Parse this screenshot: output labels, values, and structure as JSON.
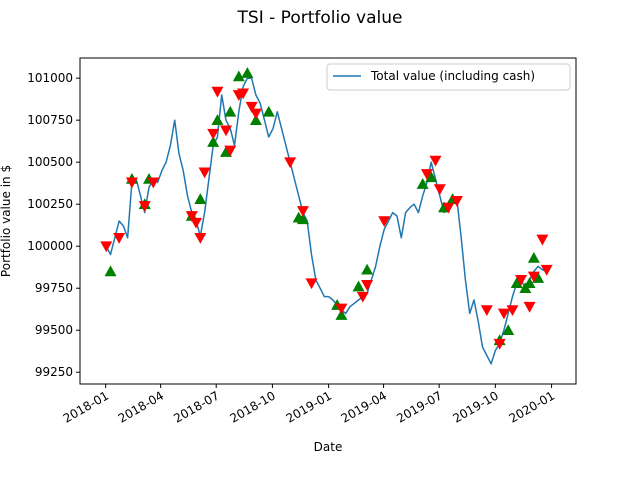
{
  "chart_data": {
    "type": "line",
    "title": "TSI - Portfolio value",
    "xlabel": "Date",
    "ylabel": "Portfolio value in $",
    "legend": {
      "entries": [
        "Total value (including cash)"
      ],
      "placement": "top-right"
    },
    "x_ticks": [
      "2018-01",
      "2018-04",
      "2018-07",
      "2018-10",
      "2019-01",
      "2019-04",
      "2019-07",
      "2019-10",
      "2020-01"
    ],
    "y_ticks": [
      99250,
      99500,
      99750,
      100000,
      100250,
      100500,
      100750,
      101000
    ],
    "xlim": [
      "2017-11-20",
      "2020-02-10"
    ],
    "ylim": [
      99180,
      101120
    ],
    "grid": false,
    "line_color": "#1f77b4",
    "buy_color": "#008000",
    "sell_color": "#ff0000",
    "series": [
      {
        "name": "Total value (including cash)",
        "points": [
          [
            "2018-01-02",
            100000
          ],
          [
            "2018-01-09",
            99950
          ],
          [
            "2018-01-16",
            100050
          ],
          [
            "2018-01-23",
            100150
          ],
          [
            "2018-01-30",
            100120
          ],
          [
            "2018-02-06",
            100050
          ],
          [
            "2018-02-13",
            100380
          ],
          [
            "2018-02-20",
            100400
          ],
          [
            "2018-02-27",
            100300
          ],
          [
            "2018-03-06",
            100200
          ],
          [
            "2018-03-13",
            100350
          ],
          [
            "2018-03-20",
            100400
          ],
          [
            "2018-03-27",
            100380
          ],
          [
            "2018-04-03",
            100450
          ],
          [
            "2018-04-10",
            100500
          ],
          [
            "2018-04-17",
            100600
          ],
          [
            "2018-04-24",
            100750
          ],
          [
            "2018-05-01",
            100550
          ],
          [
            "2018-05-08",
            100450
          ],
          [
            "2018-05-15",
            100300
          ],
          [
            "2018-05-22",
            100200
          ],
          [
            "2018-05-29",
            100150
          ],
          [
            "2018-06-05",
            100060
          ],
          [
            "2018-06-12",
            100200
          ],
          [
            "2018-06-19",
            100400
          ],
          [
            "2018-06-26",
            100600
          ],
          [
            "2018-07-03",
            100650
          ],
          [
            "2018-07-10",
            100900
          ],
          [
            "2018-07-17",
            100750
          ],
          [
            "2018-07-24",
            100700
          ],
          [
            "2018-07-31",
            100600
          ],
          [
            "2018-08-07",
            100800
          ],
          [
            "2018-08-14",
            100950
          ],
          [
            "2018-08-21",
            101000
          ],
          [
            "2018-08-28",
            101000
          ],
          [
            "2018-09-04",
            100900
          ],
          [
            "2018-09-11",
            100850
          ],
          [
            "2018-09-18",
            100750
          ],
          [
            "2018-09-25",
            100650
          ],
          [
            "2018-10-02",
            100700
          ],
          [
            "2018-10-09",
            100800
          ],
          [
            "2018-10-16",
            100700
          ],
          [
            "2018-10-23",
            100600
          ],
          [
            "2018-10-30",
            100500
          ],
          [
            "2018-11-06",
            100400
          ],
          [
            "2018-11-13",
            100300
          ],
          [
            "2018-11-20",
            100200
          ],
          [
            "2018-11-27",
            100150
          ],
          [
            "2018-12-04",
            99950
          ],
          [
            "2018-12-11",
            99800
          ],
          [
            "2018-12-18",
            99750
          ],
          [
            "2018-12-25",
            99700
          ],
          [
            "2019-01-01",
            99700
          ],
          [
            "2019-01-08",
            99680
          ],
          [
            "2019-01-15",
            99650
          ],
          [
            "2019-01-22",
            99620
          ],
          [
            "2019-01-29",
            99600
          ],
          [
            "2019-02-05",
            99640
          ],
          [
            "2019-02-12",
            99660
          ],
          [
            "2019-02-19",
            99680
          ],
          [
            "2019-02-26",
            99700
          ],
          [
            "2019-03-05",
            99720
          ],
          [
            "2019-03-12",
            99800
          ],
          [
            "2019-03-19",
            99880
          ],
          [
            "2019-03-26",
            100000
          ],
          [
            "2019-04-02",
            100100
          ],
          [
            "2019-04-09",
            100150
          ],
          [
            "2019-04-16",
            100200
          ],
          [
            "2019-04-23",
            100180
          ],
          [
            "2019-04-30",
            100050
          ],
          [
            "2019-05-07",
            100200
          ],
          [
            "2019-05-14",
            100230
          ],
          [
            "2019-05-21",
            100250
          ],
          [
            "2019-05-28",
            100200
          ],
          [
            "2019-06-04",
            100300
          ],
          [
            "2019-06-11",
            100380
          ],
          [
            "2019-06-18",
            100500
          ],
          [
            "2019-06-25",
            100400
          ],
          [
            "2019-07-02",
            100300
          ],
          [
            "2019-07-09",
            100200
          ],
          [
            "2019-07-16",
            100260
          ],
          [
            "2019-07-23",
            100300
          ],
          [
            "2019-07-30",
            100280
          ],
          [
            "2019-08-06",
            100050
          ],
          [
            "2019-08-13",
            99800
          ],
          [
            "2019-08-20",
            99600
          ],
          [
            "2019-08-27",
            99680
          ],
          [
            "2019-09-03",
            99550
          ],
          [
            "2019-09-10",
            99400
          ],
          [
            "2019-09-17",
            99350
          ],
          [
            "2019-09-24",
            99300
          ],
          [
            "2019-10-01",
            99380
          ],
          [
            "2019-10-08",
            99420
          ],
          [
            "2019-10-15",
            99500
          ],
          [
            "2019-10-22",
            99600
          ],
          [
            "2019-10-29",
            99700
          ],
          [
            "2019-11-05",
            99780
          ],
          [
            "2019-11-12",
            99800
          ],
          [
            "2019-11-19",
            99750
          ],
          [
            "2019-11-26",
            99800
          ],
          [
            "2019-12-03",
            99850
          ],
          [
            "2019-12-10",
            99880
          ],
          [
            "2019-12-17",
            99860
          ],
          [
            "2019-12-24",
            99850
          ]
        ]
      }
    ],
    "markers": {
      "buy": [
        [
          "2018-01-09",
          99850
        ],
        [
          "2018-02-13",
          100400
        ],
        [
          "2018-03-06",
          100250
        ],
        [
          "2018-03-13",
          100400
        ],
        [
          "2018-05-22",
          100180
        ],
        [
          "2018-06-05",
          100280
        ],
        [
          "2018-06-26",
          100620
        ],
        [
          "2018-07-03",
          100750
        ],
        [
          "2018-07-17",
          100560
        ],
        [
          "2018-07-24",
          100800
        ],
        [
          "2018-08-07",
          101010
        ],
        [
          "2018-08-21",
          101030
        ],
        [
          "2018-09-04",
          100750
        ],
        [
          "2018-09-25",
          100800
        ],
        [
          "2018-11-13",
          100170
        ],
        [
          "2018-11-20",
          100160
        ],
        [
          "2019-01-15",
          99650
        ],
        [
          "2019-01-22",
          99590
        ],
        [
          "2019-02-19",
          99760
        ],
        [
          "2019-03-05",
          99860
        ],
        [
          "2019-06-04",
          100370
        ],
        [
          "2019-06-18",
          100410
        ],
        [
          "2019-07-09",
          100230
        ],
        [
          "2019-07-23",
          100280
        ],
        [
          "2019-10-08",
          99440
        ],
        [
          "2019-10-22",
          99500
        ],
        [
          "2019-11-05",
          99780
        ],
        [
          "2019-11-19",
          99750
        ],
        [
          "2019-11-26",
          99780
        ],
        [
          "2019-12-03",
          99930
        ],
        [
          "2019-12-10",
          99810
        ]
      ],
      "sell": [
        [
          "2018-01-02",
          100000
        ],
        [
          "2018-01-23",
          100050
        ],
        [
          "2018-02-13",
          100380
        ],
        [
          "2018-03-06",
          100240
        ],
        [
          "2018-03-20",
          100380
        ],
        [
          "2018-05-22",
          100180
        ],
        [
          "2018-05-29",
          100140
        ],
        [
          "2018-06-05",
          100050
        ],
        [
          "2018-06-12",
          100440
        ],
        [
          "2018-06-26",
          100670
        ],
        [
          "2018-07-03",
          100920
        ],
        [
          "2018-07-17",
          100690
        ],
        [
          "2018-07-24",
          100570
        ],
        [
          "2018-08-07",
          100900
        ],
        [
          "2018-08-14",
          100910
        ],
        [
          "2018-08-28",
          100830
        ],
        [
          "2018-09-04",
          100790
        ],
        [
          "2018-10-30",
          100500
        ],
        [
          "2018-11-20",
          100210
        ],
        [
          "2018-12-04",
          99780
        ],
        [
          "2019-01-22",
          99630
        ],
        [
          "2019-02-26",
          99700
        ],
        [
          "2019-03-05",
          99770
        ],
        [
          "2019-04-02",
          100150
        ],
        [
          "2019-06-11",
          100430
        ],
        [
          "2019-06-25",
          100510
        ],
        [
          "2019-07-02",
          100340
        ],
        [
          "2019-07-16",
          100230
        ],
        [
          "2019-07-30",
          100270
        ],
        [
          "2019-09-17",
          99620
        ],
        [
          "2019-10-08",
          99420
        ],
        [
          "2019-10-15",
          99600
        ],
        [
          "2019-10-29",
          99620
        ],
        [
          "2019-11-12",
          99800
        ],
        [
          "2019-11-26",
          99640
        ],
        [
          "2019-12-03",
          99820
        ],
        [
          "2019-12-17",
          100040
        ],
        [
          "2019-12-24",
          99860
        ]
      ]
    }
  }
}
